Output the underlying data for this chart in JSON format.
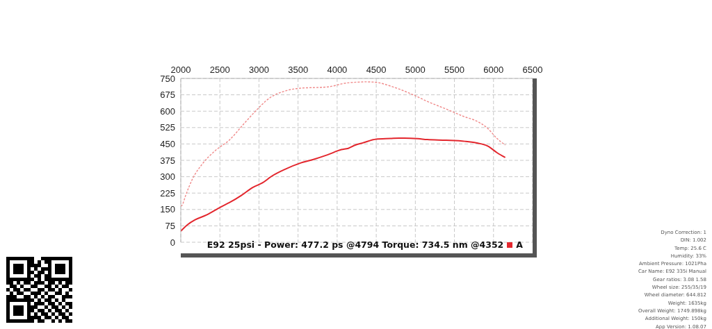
{
  "chart_data": {
    "type": "line",
    "legend_title": "E92 25psi - Power: 477.2 ps @4794 Torque: 734.5 nm @4352",
    "xlim": [
      2000,
      6500
    ],
    "xticks": [
      2000,
      2500,
      3000,
      3500,
      4000,
      4500,
      5000,
      5500,
      6000,
      6500
    ],
    "ylim": [
      0,
      750
    ],
    "yticks": [
      0,
      75,
      150,
      225,
      300,
      375,
      450,
      525,
      600,
      675,
      750
    ],
    "grid": true,
    "legend": "bottom right",
    "series": [
      {
        "name": "A",
        "color": "#e3262d",
        "line_style": "solid",
        "x": [
          2000,
          2089,
          2179,
          2330,
          2509,
          2625,
          2777,
          2920,
          3045,
          3161,
          3339,
          3518,
          3696,
          3875,
          4054,
          4143,
          4232,
          4321,
          4500,
          4679,
          4794,
          4857,
          5036,
          5152,
          5393,
          5634,
          5777,
          5929,
          6045,
          6150
        ],
        "values": [
          51,
          81,
          102,
          125,
          161,
          182,
          215,
          251,
          272,
          302,
          335,
          361,
          379,
          400,
          424,
          430,
          445,
          454,
          472,
          475,
          477,
          477,
          474,
          470,
          467,
          462,
          455,
          440,
          410,
          388
        ]
      },
      {
        "color": "#f08a8a",
        "line_style": "dashed",
        "x": [
          2000,
          2018,
          2060,
          2150,
          2270,
          2446,
          2625,
          2804,
          2955,
          3134,
          3339,
          3518,
          3875,
          4116,
          4321,
          4352,
          4473,
          4741,
          4973,
          5152,
          5393,
          5634,
          5777,
          5929,
          6045,
          6150
        ],
        "values": [
          165,
          170,
          212,
          290,
          356,
          421,
          469,
          541,
          600,
          660,
          693,
          705,
          711,
          729,
          734,
          734.5,
          733,
          708,
          675,
          645,
          610,
          574,
          556,
          520,
          475,
          445
        ]
      }
    ],
    "annotations": [
      "Dyno Correction: 1",
      "DIN: 1.002",
      "Temp: 25.6 C",
      "Humidity: 33%",
      "Ambient Pressure: 1021Pha",
      "Car Name: E92 335i Manual",
      "Gear ratios: 3.08 1.58",
      "Wheel size: 255/35/19",
      "Wheel diameter: 644.812",
      "Weight: 1635kg",
      "Overall Weight: 1749.898kg",
      "Additional Weight: 150kg",
      "App Version: 1.08.07"
    ]
  }
}
